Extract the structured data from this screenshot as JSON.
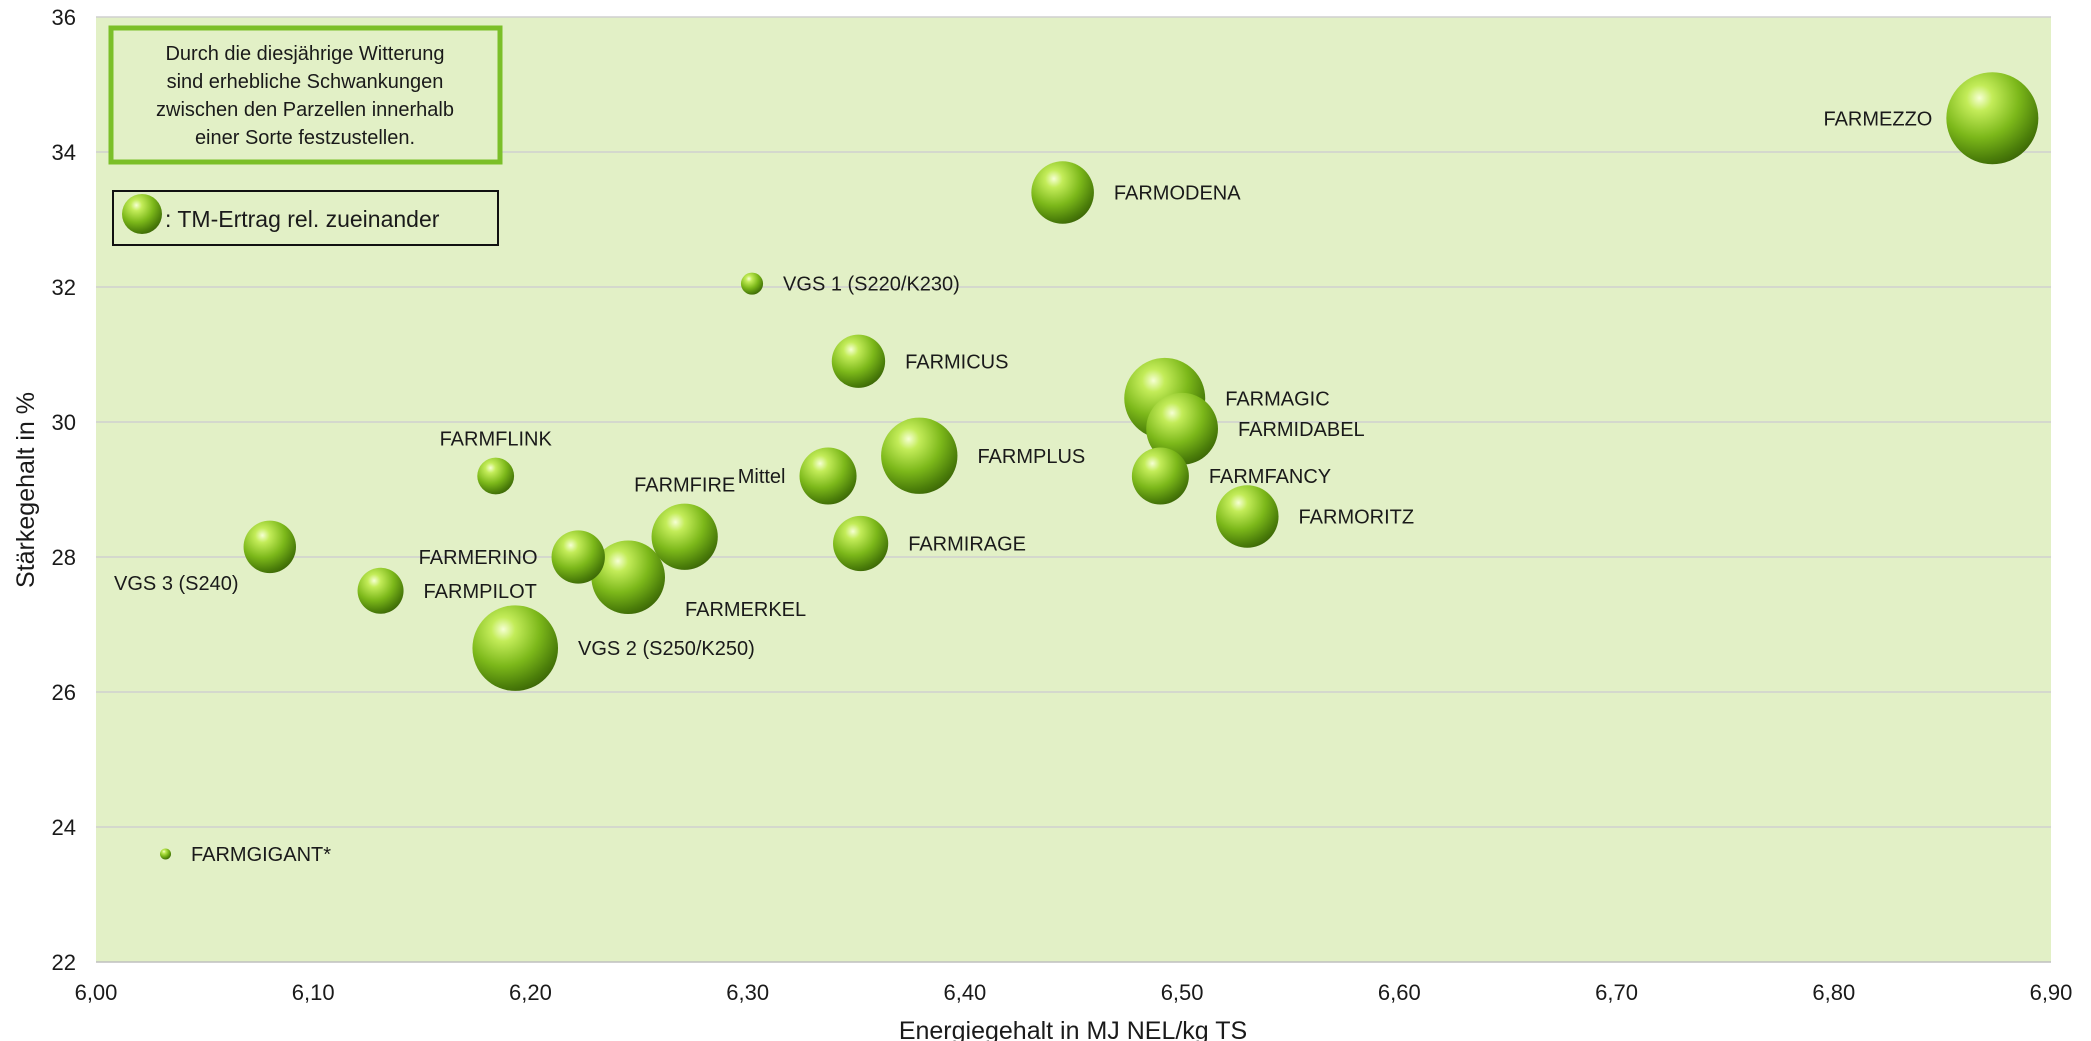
{
  "chart_data": {
    "type": "bubble",
    "xlabel": "Energiegehalt in MJ NEL/kg TS",
    "ylabel": "Stärkegehalt in %",
    "xlim": [
      6.0,
      6.9
    ],
    "ylim": [
      22,
      36
    ],
    "x_ticks": [
      "6,00",
      "6,10",
      "6,20",
      "6,30",
      "6,40",
      "6,50",
      "6,60",
      "6,70",
      "6,80",
      "6,90"
    ],
    "y_ticks": [
      "22",
      "24",
      "26",
      "28",
      "30",
      "32",
      "34",
      "36"
    ],
    "grid": "horizontal",
    "bubble_color": "#7db81c",
    "plot_background": "#e2f0c6",
    "annotation": "Durch die diesjährige Witterung sind erhebliche Schwankungen zwischen den Parzellen innerhalb einer Sorte festzustellen.",
    "annotation_lines": [
      "Durch die diesjährige Witterung",
      "sind erhebliche Schwankungen",
      "zwischen den Parzellen innerhalb",
      "einer Sorte festzustellen."
    ],
    "legend": ": TM-Ertrag rel. zueinander",
    "points": [
      {
        "label": "FARMEZZO",
        "x": 6.873,
        "y": 34.5,
        "size": 1.0,
        "label_side": "left"
      },
      {
        "label": "FARMODENA",
        "x": 6.445,
        "y": 33.4,
        "size": 0.68,
        "label_side": "right"
      },
      {
        "label": "VGS 1 (S220/K230)",
        "x": 6.302,
        "y": 32.05,
        "size": 0.24,
        "label_side": "right"
      },
      {
        "label": "FARMICUS",
        "x": 6.351,
        "y": 30.9,
        "size": 0.58,
        "label_side": "right"
      },
      {
        "label": "FARMAGIC",
        "x": 6.492,
        "y": 30.35,
        "size": 0.88,
        "label_side": "right"
      },
      {
        "label": "FARMIDABEL",
        "x": 6.5,
        "y": 29.9,
        "size": 0.78,
        "label_side": "right"
      },
      {
        "label": "FARMFLINK",
        "x": 6.184,
        "y": 29.2,
        "size": 0.4,
        "label_side": "top"
      },
      {
        "label": "Mittel",
        "x": 6.337,
        "y": 29.2,
        "size": 0.62,
        "label_side": "left"
      },
      {
        "label": "FARMPLUS",
        "x": 6.379,
        "y": 29.5,
        "size": 0.83,
        "label_side": "right"
      },
      {
        "label": "FARMFANCY",
        "x": 6.49,
        "y": 29.2,
        "size": 0.62,
        "label_side": "right"
      },
      {
        "label": "FARMORITZ",
        "x": 6.53,
        "y": 28.6,
        "size": 0.68,
        "label_side": "right"
      },
      {
        "label": "FARMFIRE",
        "x": 6.271,
        "y": 28.3,
        "size": 0.72,
        "label_side": "top"
      },
      {
        "label": "FARMIRAGE",
        "x": 6.352,
        "y": 28.2,
        "size": 0.6,
        "label_side": "right"
      },
      {
        "label": "FARMERINO",
        "x": 6.222,
        "y": 28.0,
        "size": 0.58,
        "label_side": "left"
      },
      {
        "label": "FARMERKEL",
        "x": 6.245,
        "y": 27.7,
        "size": 0.8,
        "label_side": "right_below"
      },
      {
        "label": "VGS 3 (S240)",
        "x": 6.08,
        "y": 28.15,
        "size": 0.57,
        "label_side": "left_below"
      },
      {
        "label": "FARMPILOT",
        "x": 6.131,
        "y": 27.5,
        "size": 0.5,
        "label_side": "right"
      },
      {
        "label": "VGS 2 (S250/K250)",
        "x": 6.193,
        "y": 26.65,
        "size": 0.93,
        "label_side": "right"
      },
      {
        "label": "FARMGIGANT*",
        "x": 6.032,
        "y": 23.6,
        "size": 0.12,
        "label_side": "right"
      }
    ]
  }
}
